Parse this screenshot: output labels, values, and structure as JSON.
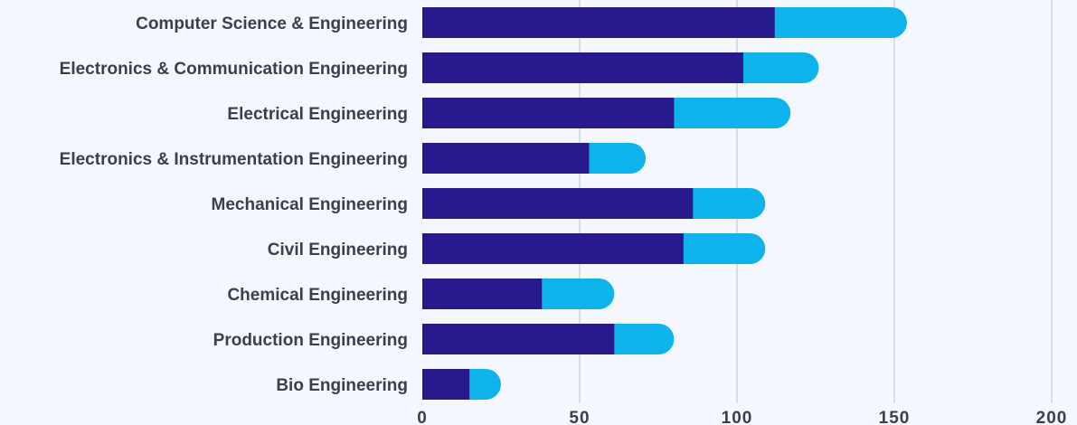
{
  "chart_data": {
    "type": "bar",
    "orientation": "horizontal",
    "stacked": true,
    "categories": [
      "Computer Science & Engineering",
      "Electronics & Communication Engineering",
      "Electrical Engineering",
      "Electronics & Instrumentation Engineering",
      "Mechanical Engineering",
      "Civil Engineering",
      "Chemical Engineering",
      "Production Engineering",
      "Bio Engineering"
    ],
    "series": [
      {
        "color": "#261a8c",
        "values": [
          112,
          102,
          80,
          53,
          86,
          83,
          38,
          61,
          15
        ]
      },
      {
        "color": "#0fb3ec",
        "values": [
          42,
          24,
          37,
          18,
          23,
          26,
          23,
          19,
          10
        ]
      }
    ],
    "xlim": [
      0,
      200
    ],
    "xticks": [
      "0",
      "50",
      "100",
      "150",
      "200"
    ],
    "grid": "vertical",
    "legend": "none"
  }
}
